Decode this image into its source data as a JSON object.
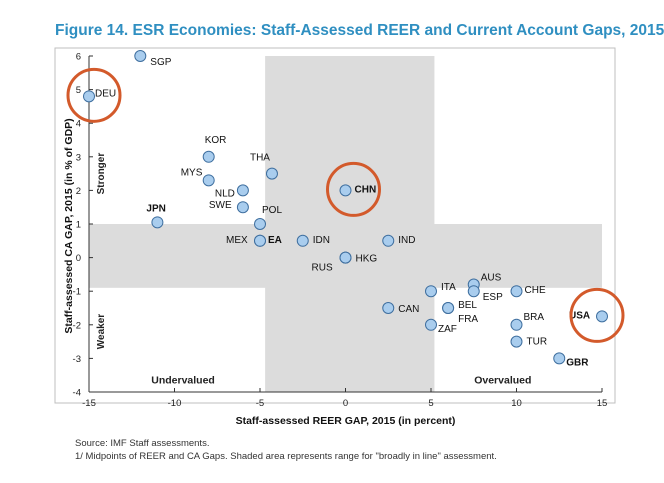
{
  "title": "Figure 14. ESR Economies: Staff-Assessed REER and Current Account Gaps, 2015",
  "notes": {
    "source": "Source: IMF Staff assessments.",
    "footnote": "1/ Midpoints of REER and CA Gaps. Shaded area represents range for \"broadly in line\" assessment."
  },
  "chart_data": {
    "type": "scatter",
    "xlabel": "Staff-assessed REER GAP, 2015 (in percent)",
    "ylabel": "Staff-assessed CA GAP, 2015 (in % of GDP)",
    "xlim": [
      -15,
      15
    ],
    "ylim": [
      -4,
      6
    ],
    "xticks": [
      -15,
      -10,
      -5,
      0,
      5,
      10,
      15
    ],
    "yticks": [
      -4,
      -3,
      -2,
      -1,
      0,
      1,
      2,
      3,
      4,
      5,
      6
    ],
    "shaded_x_range": [
      -4.7,
      5.2
    ],
    "shaded_y_range": [
      -0.9,
      1.0
    ],
    "grid": false,
    "region_labels": {
      "stronger": "Stronger",
      "weaker": "Weaker",
      "undervalued": "Undervalued",
      "overvalued": "Overvalued"
    },
    "highlight_color": "#d35a2b",
    "point_color": "#a9cdee",
    "points": [
      {
        "label": "SGP",
        "x": -12,
        "y": 6.0,
        "bold": false,
        "circled": false
      },
      {
        "label": "DEU",
        "x": -15,
        "y": 4.8,
        "bold": false,
        "circled": true
      },
      {
        "label": "KOR",
        "x": -8,
        "y": 3.0,
        "bold": false,
        "circled": false
      },
      {
        "label": "MYS",
        "x": -8,
        "y": 2.3,
        "bold": false,
        "circled": false
      },
      {
        "label": "THA",
        "x": -4.3,
        "y": 2.5,
        "bold": false,
        "circled": false
      },
      {
        "label": "NLD",
        "x": -6,
        "y": 2.0,
        "bold": false,
        "circled": false
      },
      {
        "label": "SWE",
        "x": -6,
        "y": 1.5,
        "bold": false,
        "circled": false
      },
      {
        "label": "POL",
        "x": -5,
        "y": 1.0,
        "bold": false,
        "circled": false
      },
      {
        "label": "JPN",
        "x": -11,
        "y": 1.05,
        "bold": true,
        "circled": false
      },
      {
        "label": "MEX",
        "x": -5,
        "y": 0.5,
        "bold": false,
        "circled": false
      },
      {
        "label": "EA",
        "x": -5,
        "y": 0.5,
        "bold": true,
        "circled": false
      },
      {
        "label": "IDN",
        "x": -2.5,
        "y": 0.5,
        "bold": false,
        "circled": false
      },
      {
        "label": "CHN",
        "x": 0,
        "y": 2.0,
        "bold": true,
        "circled": true
      },
      {
        "label": "IND",
        "x": 2.5,
        "y": 0.5,
        "bold": false,
        "circled": false
      },
      {
        "label": "HKG",
        "x": 0,
        "y": 0.0,
        "bold": false,
        "circled": false
      },
      {
        "label": "RUS",
        "x": 0,
        "y": 0.0,
        "bold": false,
        "circled": false
      },
      {
        "label": "ITA",
        "x": 5,
        "y": -1.0,
        "bold": false,
        "circled": false
      },
      {
        "label": "AUS",
        "x": 7.5,
        "y": -0.8,
        "bold": false,
        "circled": false
      },
      {
        "label": "ESP",
        "x": 7.5,
        "y": -1.0,
        "bold": false,
        "circled": false
      },
      {
        "label": "CHE",
        "x": 10,
        "y": -1.0,
        "bold": false,
        "circled": false
      },
      {
        "label": "CAN",
        "x": 2.5,
        "y": -1.5,
        "bold": false,
        "circled": false
      },
      {
        "label": "BEL",
        "x": 6,
        "y": -1.5,
        "bold": false,
        "circled": false
      },
      {
        "label": "FRA",
        "x": 6,
        "y": -1.5,
        "bold": false,
        "circled": false
      },
      {
        "label": "ZAF",
        "x": 5,
        "y": -2.0,
        "bold": false,
        "circled": false
      },
      {
        "label": "BRA",
        "x": 10,
        "y": -2.0,
        "bold": false,
        "circled": false
      },
      {
        "label": "TUR",
        "x": 10,
        "y": -2.5,
        "bold": false,
        "circled": false
      },
      {
        "label": "USA",
        "x": 15,
        "y": -1.75,
        "bold": true,
        "circled": true
      },
      {
        "label": "GBR",
        "x": 12.5,
        "y": -3.0,
        "bold": true,
        "circled": false
      }
    ]
  }
}
